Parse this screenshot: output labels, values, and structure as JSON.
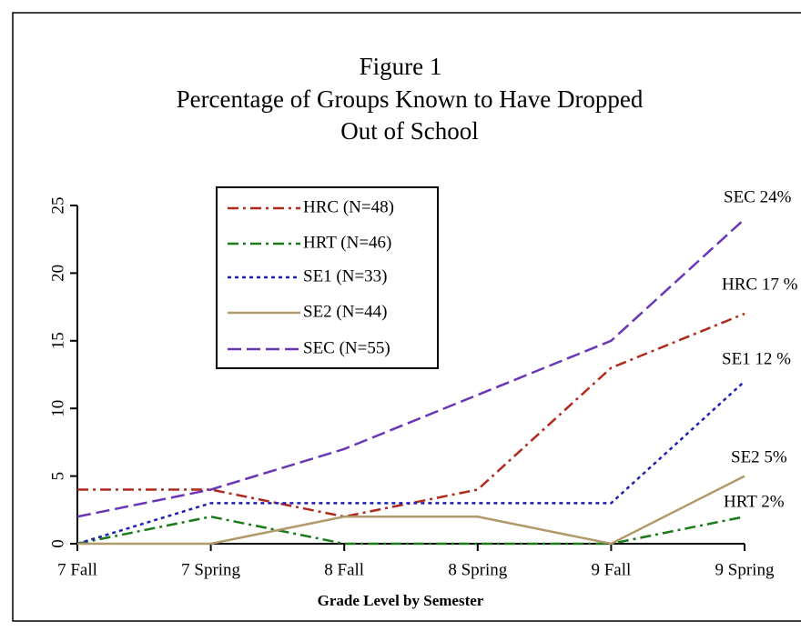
{
  "chart_data": {
    "type": "line",
    "title": "Figure 1",
    "subtitle": [
      "Percentage of Groups Known to Have Dropped",
      "Out of School"
    ],
    "x_label": "Grade Level by Semester",
    "categories": [
      "7 Fall",
      "7 Spring",
      "8 Fall",
      "8 Spring",
      "9 Fall",
      "9 Spring"
    ],
    "ylim": [
      0,
      25
    ],
    "yticks": [
      0,
      5,
      10,
      15,
      20,
      25
    ],
    "legend": "upper left",
    "series": [
      {
        "name": "HRC (N=48)",
        "color": "#b02a1c",
        "dash": "dash-dot",
        "values": [
          4,
          4,
          2,
          4,
          13,
          17
        ]
      },
      {
        "name": "HRT (N=46)",
        "color": "#1a7a1a",
        "dash": "dash-dot",
        "values": [
          0,
          2,
          0,
          0,
          0,
          2
        ]
      },
      {
        "name": "SE1 (N=33)",
        "color": "#1f22b0",
        "dash": "dotted",
        "values": [
          0,
          3,
          3,
          3,
          3,
          12
        ]
      },
      {
        "name": "SE2 (N=44)",
        "color": "#b09a6c",
        "dash": "solid",
        "values": [
          0,
          0,
          2,
          2,
          0,
          5
        ]
      },
      {
        "name": "SEC (N=55)",
        "color": "#6a36b8",
        "dash": "dashed",
        "values": [
          2,
          4,
          7,
          11,
          15,
          24
        ]
      }
    ],
    "annotations": [
      "SEC 24%",
      "HRC 17 %",
      "SE1 12 %",
      "SE2 5%",
      "HRT 2%"
    ]
  }
}
